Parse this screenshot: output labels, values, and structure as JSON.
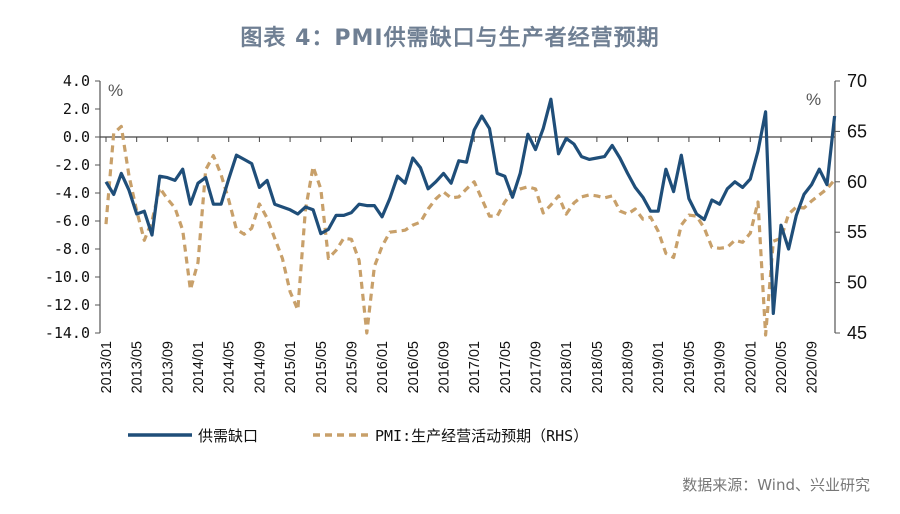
{
  "title": "图表 4：PMI供需缺口与生产者经营预期",
  "source": "数据来源：Wind、兴业研究",
  "chart_data": {
    "type": "line",
    "title": "图表 4：PMI供需缺口与生产者经营预期",
    "left_unit": "%",
    "right_unit": "%",
    "left_axis": {
      "range": [
        -14,
        4
      ],
      "ticks": [
        4,
        2,
        0,
        -2,
        -4,
        -6,
        -8,
        -10,
        -12,
        -14
      ],
      "tick_labels": [
        "4.0",
        "2.0",
        "0.0",
        "-2.0",
        "-4.0",
        "-6.0",
        "-8.0",
        "-10.0",
        "-12.0",
        "-14.0"
      ]
    },
    "right_axis": {
      "range": [
        45,
        70
      ],
      "ticks": [
        70,
        65,
        60,
        55,
        50,
        45
      ],
      "tick_labels": [
        "70",
        "65",
        "60",
        "55",
        "50",
        "45"
      ]
    },
    "x_tick_labels": [
      "2013/01",
      "2013/05",
      "2013/09",
      "2014/01",
      "2014/05",
      "2014/09",
      "2015/01",
      "2015/05",
      "2015/09",
      "2016/01",
      "2016/05",
      "2016/09",
      "2017/01",
      "2017/05",
      "2017/09",
      "2018/01",
      "2018/05",
      "2018/09",
      "2019/01",
      "2019/05",
      "2019/09",
      "2020/01",
      "2020/05",
      "2020/09"
    ],
    "x_start": "2013/01",
    "x_end": "2020/12",
    "x_tick_interval_months": 4,
    "grid": false,
    "zero_line": true,
    "legend_position": "bottom",
    "series": [
      {
        "name": "供需缺口",
        "axis": "left",
        "style": "solid",
        "color": "#1f4e79",
        "values": [
          -3.2,
          -4.1,
          -2.6,
          -3.8,
          -5.5,
          -5.3,
          -7.0,
          -2.8,
          -2.9,
          -3.1,
          -2.3,
          -4.8,
          -3.3,
          -2.9,
          -4.8,
          -4.8,
          -3.0,
          -1.3,
          -1.6,
          -1.9,
          -3.6,
          -3.1,
          -4.8,
          -5.0,
          -5.2,
          -5.5,
          -5.0,
          -5.2,
          -6.9,
          -6.6,
          -5.6,
          -5.6,
          -5.4,
          -4.8,
          -4.9,
          -4.9,
          -5.7,
          -4.4,
          -2.8,
          -3.3,
          -1.5,
          -2.2,
          -3.7,
          -3.2,
          -2.6,
          -3.3,
          -1.7,
          -1.8,
          0.5,
          1.5,
          0.6,
          -2.6,
          -2.8,
          -4.3,
          -2.6,
          0.2,
          -0.9,
          0.6,
          2.7,
          -1.2,
          -0.1,
          -0.5,
          -1.4,
          -1.6,
          -1.5,
          -1.4,
          -0.6,
          -1.5,
          -2.6,
          -3.6,
          -4.3,
          -5.3,
          -5.3,
          -2.3,
          -3.9,
          -1.3,
          -4.4,
          -5.5,
          -5.9,
          -4.5,
          -4.8,
          -3.7,
          -3.2,
          -3.6,
          -3.0,
          -1.0,
          1.8,
          -12.6,
          -6.3,
          -8.0,
          -5.6,
          -4.1,
          -3.4,
          -2.3,
          -3.4,
          1.5
        ]
      },
      {
        "name": "PMI:生产经营活动预期（RHS）",
        "axis": "right",
        "style": "dashed",
        "color": "#c8a06a",
        "values": [
          55.8,
          64.8,
          65.5,
          60.6,
          57.1,
          54.2,
          56.1,
          59.4,
          58.3,
          57.4,
          55.2,
          49.3,
          52.0,
          61.2,
          62.6,
          60.7,
          58.2,
          55.3,
          54.8,
          55.4,
          57.8,
          56.4,
          54.4,
          52.4,
          49.1,
          47.3,
          57.2,
          61.5,
          59.3,
          52.4,
          53.2,
          54.4,
          54.3,
          52.2,
          45.0,
          51.6,
          53.6,
          55.0,
          55.1,
          55.2,
          55.7,
          56.0,
          57.3,
          58.3,
          59.0,
          58.4,
          58.5,
          59.3,
          60.0,
          58.3,
          56.6,
          56.6,
          58.0,
          59.0,
          59.3,
          59.5,
          59.3,
          56.9,
          57.7,
          58.6,
          56.8,
          57.9,
          58.5,
          58.7,
          58.6,
          58.4,
          58.6,
          57.1,
          56.8,
          57.3,
          56.3,
          56.5,
          55.1,
          52.9,
          52.5,
          55.7,
          56.7,
          56.6,
          55.4,
          53.5,
          53.4,
          53.5,
          54.2,
          54.0,
          54.9,
          58.0,
          44.8,
          54.1,
          54.4,
          56.8,
          57.5,
          57.4,
          58.1,
          58.7,
          59.3,
          60.2
        ]
      }
    ]
  }
}
